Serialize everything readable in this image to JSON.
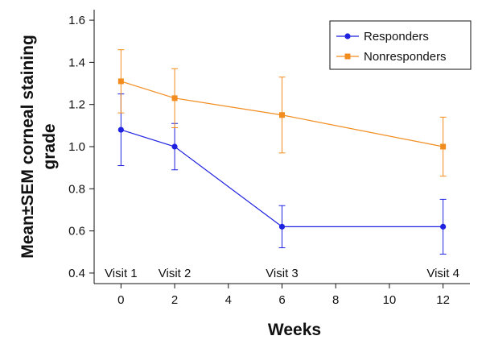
{
  "chart_data": {
    "type": "line",
    "xlabel": "Weeks",
    "ylabel_lines": [
      "Mean±SEM corneal staining",
      "grade"
    ],
    "xlim": [
      -1,
      13
    ],
    "ylim": [
      0.35,
      1.65
    ],
    "x_ticks": [
      0,
      2,
      4,
      6,
      8,
      10,
      12
    ],
    "y_ticks": [
      "0.4",
      "0.6",
      "0.8",
      "1.0",
      "1.2",
      "1.4",
      "1.6"
    ],
    "visit_labels": [
      {
        "x": 0,
        "label": "Visit 1"
      },
      {
        "x": 2,
        "label": "Visit 2"
      },
      {
        "x": 6,
        "label": "Visit 3"
      },
      {
        "x": 12,
        "label": "Visit 4"
      }
    ],
    "legend_position": "top-right",
    "series": [
      {
        "name": "Responders",
        "color": "#1f22e0",
        "marker": "circle",
        "x": [
          0,
          2,
          6,
          12
        ],
        "y": [
          1.08,
          1.0,
          0.62,
          0.62
        ],
        "err_low": [
          0.91,
          0.89,
          0.52,
          0.49
        ],
        "err_high": [
          1.25,
          1.11,
          0.72,
          0.75
        ]
      },
      {
        "name": "Nonresponders",
        "color": "#f28c1e",
        "marker": "square",
        "x": [
          0,
          2,
          6,
          12
        ],
        "y": [
          1.31,
          1.23,
          1.15,
          1.0
        ],
        "err_low": [
          1.16,
          1.09,
          0.97,
          0.86
        ],
        "err_high": [
          1.46,
          1.37,
          1.33,
          1.14
        ]
      }
    ]
  }
}
